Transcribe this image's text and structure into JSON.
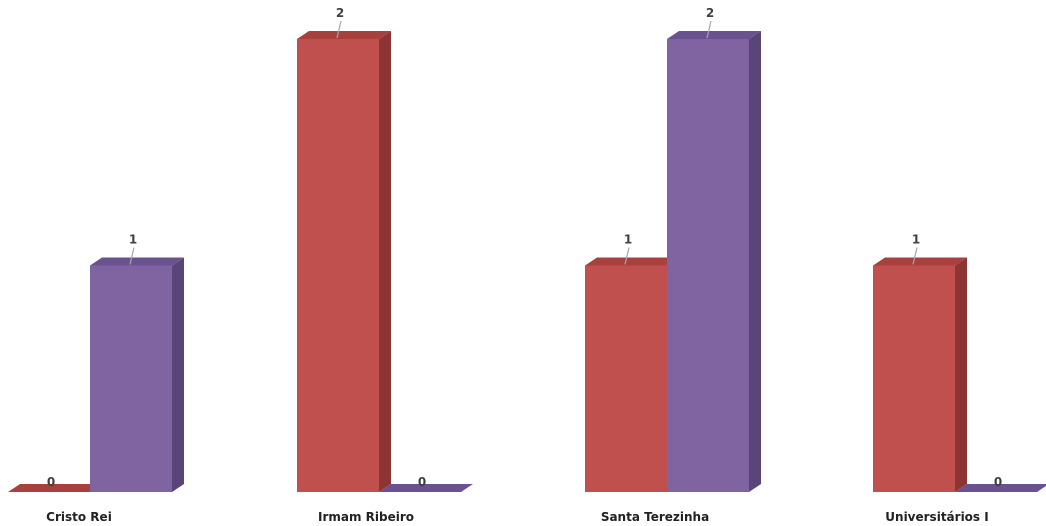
{
  "chart_data": {
    "type": "bar",
    "style": "3d-clustered-column",
    "categories": [
      "Cristo Rei",
      "Irmam Ribeiro",
      "Santa Terezinha",
      "Universitários I"
    ],
    "series": [
      {
        "values": [
          0,
          2,
          1,
          1
        ],
        "color": "#c0504d",
        "side_color": "#8c3533",
        "top_color": "#a8403d"
      },
      {
        "values": [
          1,
          0,
          2,
          0
        ],
        "color": "#8064a2",
        "side_color": "#5a4578",
        "top_color": "#6a5290"
      }
    ],
    "ylim": [
      0,
      2
    ],
    "grid": false,
    "legend": "none",
    "data_labels": true
  }
}
